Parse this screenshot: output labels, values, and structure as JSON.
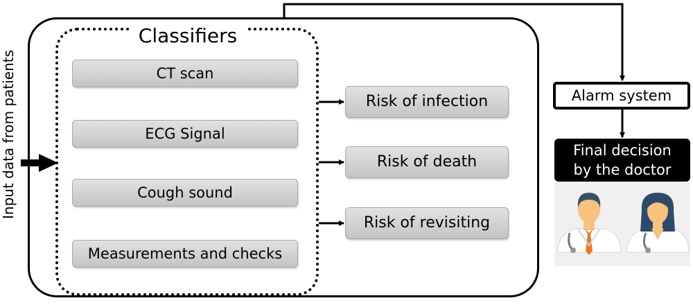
{
  "input_label": "Input data from patients",
  "classifiers": {
    "title": "Classifiers",
    "items": [
      "CT scan",
      "ECG Signal",
      "Cough sound",
      "Measurements and checks"
    ]
  },
  "risks": [
    "Risk of infection",
    "Risk of death",
    "Risk of revisiting"
  ],
  "alarm_system": "Alarm system",
  "final_decision": {
    "line1": "Final decision",
    "line2": "by the doctor"
  },
  "colors": {
    "box_fill": "#d3d3d3",
    "decision_bg": "#000000",
    "doctor_panel_bg": "#f0f0f0",
    "skin": "#f6c27e",
    "male_hair": "#3a4f63",
    "female_hair": "#2e4a6b",
    "tie": "#e97a24"
  }
}
